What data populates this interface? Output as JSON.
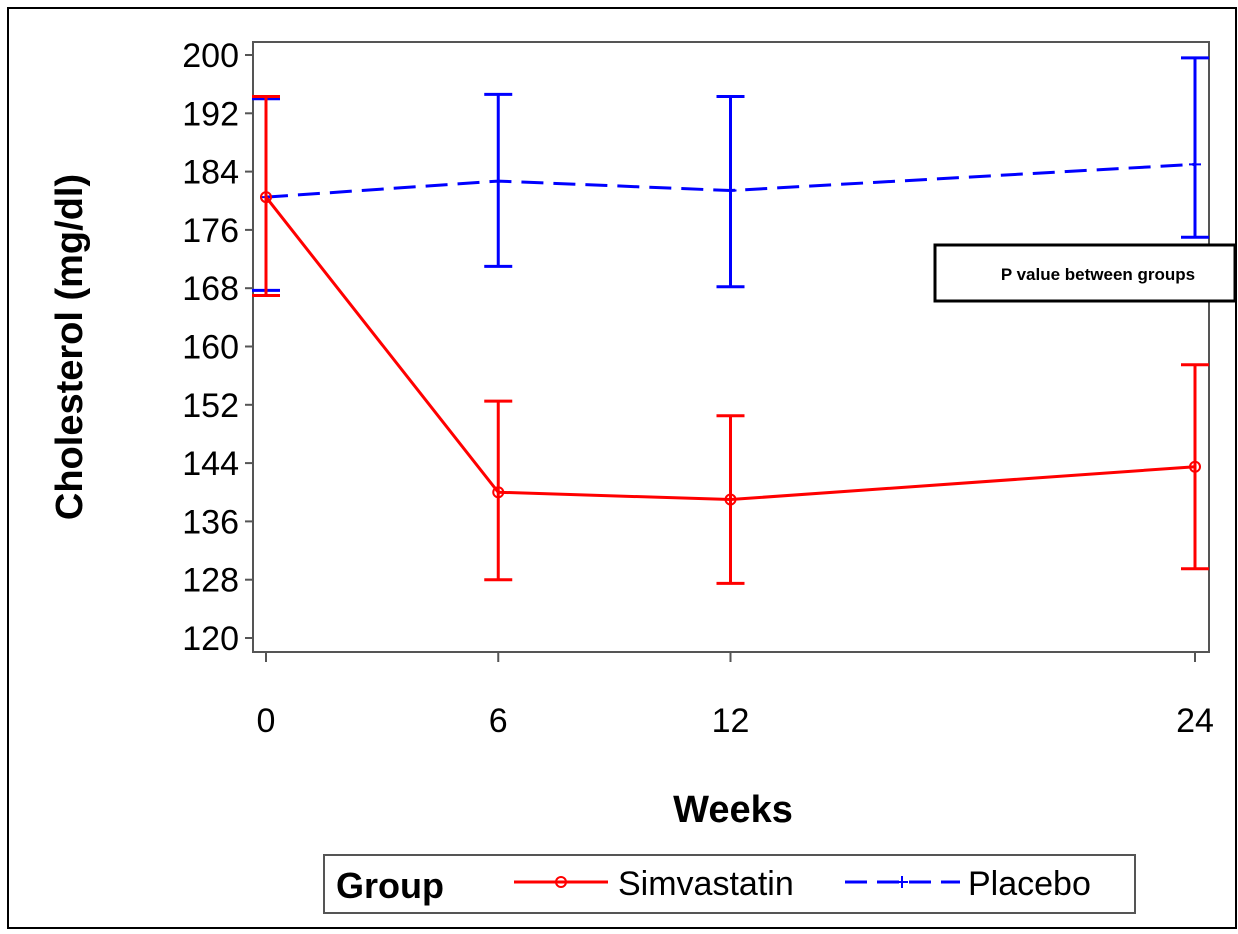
{
  "chart_data": {
    "type": "line",
    "xlabel": "Weeks",
    "ylabel": "Cholesterol (mg/dl)",
    "x": [
      0,
      6,
      12,
      24
    ],
    "x_ticks": [
      "0",
      "6",
      "12",
      "24"
    ],
    "y_ticks": [
      "120",
      "128",
      "136",
      "144",
      "152",
      "160",
      "168",
      "176",
      "184",
      "192",
      "200"
    ],
    "ylim": [
      120,
      200
    ],
    "grid": false,
    "annotation": "P value between groups",
    "legend": {
      "title": "Group",
      "placement": "bottom"
    },
    "series": [
      {
        "name": "Simvastatin",
        "color": "#ff0000",
        "line_style": "solid",
        "marker": "circle",
        "values": [
          180.5,
          140,
          139,
          143.5
        ],
        "error_low": [
          167,
          128,
          127.5,
          129.5
        ],
        "error_high": [
          194.3,
          152.5,
          150.5,
          157.5
        ]
      },
      {
        "name": "Placebo",
        "color": "#0000ff",
        "line_style": "dashed",
        "marker": "plus",
        "values": [
          180.5,
          182.7,
          181.4,
          185
        ],
        "error_low": [
          167.7,
          171,
          168.2,
          175
        ],
        "error_high": [
          194,
          194.6,
          194.3,
          199.6
        ]
      }
    ]
  }
}
